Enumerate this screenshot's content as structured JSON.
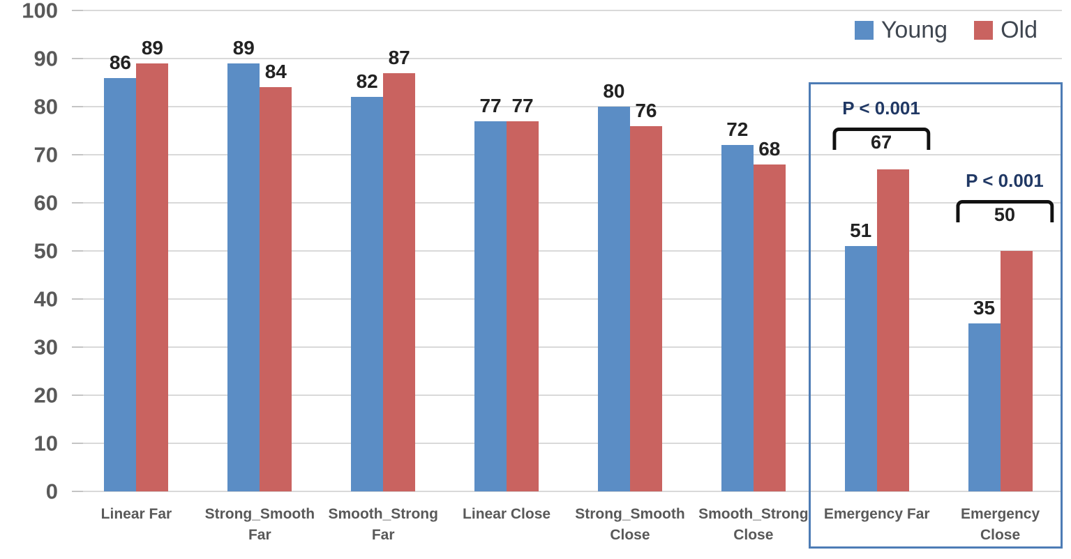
{
  "chart_data": {
    "type": "bar",
    "title": "",
    "y_axis": {
      "min": 0,
      "max": 100,
      "step": 10,
      "tick_labels": [
        "0",
        "10",
        "20",
        "30",
        "40",
        "50",
        "60",
        "70",
        "80",
        "90",
        "100"
      ]
    },
    "ylim": [
      0,
      100
    ],
    "grid": true,
    "categories": [
      {
        "label": "Linear Far",
        "lines": [
          "Linear Far"
        ]
      },
      {
        "label": "Strong_Smooth Far",
        "lines": [
          "Strong_Smooth",
          "Far"
        ]
      },
      {
        "label": "Smooth_Strong Far",
        "lines": [
          "Smooth_Strong",
          "Far"
        ]
      },
      {
        "label": "Linear Close",
        "lines": [
          "Linear Close"
        ]
      },
      {
        "label": "Strong_Smooth Close",
        "lines": [
          "Strong_Smooth",
          "Close"
        ]
      },
      {
        "label": "Smooth_Strong Close",
        "lines": [
          "Smooth_Strong",
          "Close"
        ]
      },
      {
        "label": "Emergency Far",
        "lines": [
          "Emergency Far"
        ]
      },
      {
        "label": "Emergency Close",
        "lines": [
          "Emergency",
          "Close"
        ]
      }
    ],
    "series": [
      {
        "name": "Young",
        "color": "#5b8dc5",
        "values": [
          86,
          89,
          82,
          77,
          80,
          72,
          51,
          35
        ]
      },
      {
        "name": "Old",
        "color": "#c96360",
        "values": [
          89,
          84,
          87,
          77,
          76,
          68,
          67,
          50
        ]
      }
    ],
    "annotations": [
      {
        "category": "Emergency Far",
        "category_index": 6,
        "p_label": "P < 0.001",
        "value_label": "67",
        "bottom_pct": 71
      },
      {
        "category": "Emergency Close",
        "category_index": 7,
        "p_label": "P < 0.001",
        "value_label": "50",
        "bottom_pct": 56
      }
    ],
    "highlight_box": {
      "around": [
        "Emergency Far",
        "Emergency Close"
      ],
      "border_color": "#4d7cb5"
    },
    "legend": {
      "position": "top-right",
      "entries": [
        "Young",
        "Old"
      ]
    },
    "colors": {
      "gridline": "#d9d9d9",
      "axis_text": "#595959",
      "data_label": "#222222",
      "p_label": "#203864",
      "bracket": "#111111",
      "legend_text": "#3f4650"
    }
  }
}
